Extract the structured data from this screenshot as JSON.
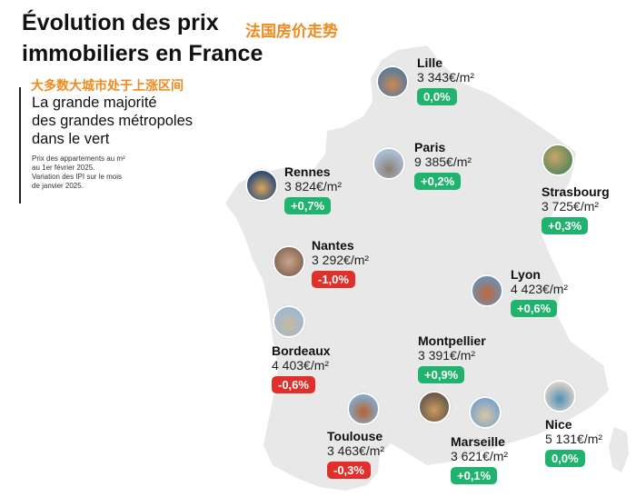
{
  "title": "Évolution des prix\nimmobiliers en France",
  "title_cn": "法国房价走势",
  "subtitle_cn": "大多数大城市处于上涨区间",
  "subtitle": "La grande majorité\ndes grandes métropoles\ndans le vert",
  "note": "Prix des appartements au m²\nau 1er février 2025.\nVariation des IPI sur le mois\nde janvier 2025.",
  "colors": {
    "map": "#e8e8e8",
    "up": "#1fb36e",
    "down": "#e0302c",
    "accent_cn": "#f08a1c"
  },
  "cities": [
    {
      "id": "lille",
      "name": "Lille",
      "price": "3 343€/m²",
      "change": "0,0%",
      "trend": "up"
    },
    {
      "id": "paris",
      "name": "Paris",
      "price": "9 385€/m²",
      "change": "+0,2%",
      "trend": "up"
    },
    {
      "id": "strasbourg",
      "name": "Strasbourg",
      "price": "3 725€/m²",
      "change": "+0,3%",
      "trend": "up"
    },
    {
      "id": "rennes",
      "name": "Rennes",
      "price": "3 824€/m²",
      "change": "+0,7%",
      "trend": "up"
    },
    {
      "id": "nantes",
      "name": "Nantes",
      "price": "3 292€/m²",
      "change": "-1,0%",
      "trend": "down"
    },
    {
      "id": "lyon",
      "name": "Lyon",
      "price": "4 423€/m²",
      "change": "+0,6%",
      "trend": "up"
    },
    {
      "id": "bordeaux",
      "name": "Bordeaux",
      "price": "4 403€/m²",
      "change": "-0,6%",
      "trend": "down"
    },
    {
      "id": "montpellier",
      "name": "Montpellier",
      "price": "3 391€/m²",
      "change": "+0,9%",
      "trend": "up"
    },
    {
      "id": "toulouse",
      "name": "Toulouse",
      "price": "3 463€/m²",
      "change": "-0,3%",
      "trend": "down"
    },
    {
      "id": "marseille",
      "name": "Marseille",
      "price": "3 621€/m²",
      "change": "+0,1%",
      "trend": "up"
    },
    {
      "id": "nice",
      "name": "Nice",
      "price": "5 131€/m²",
      "change": "0,0%",
      "trend": "up"
    }
  ]
}
